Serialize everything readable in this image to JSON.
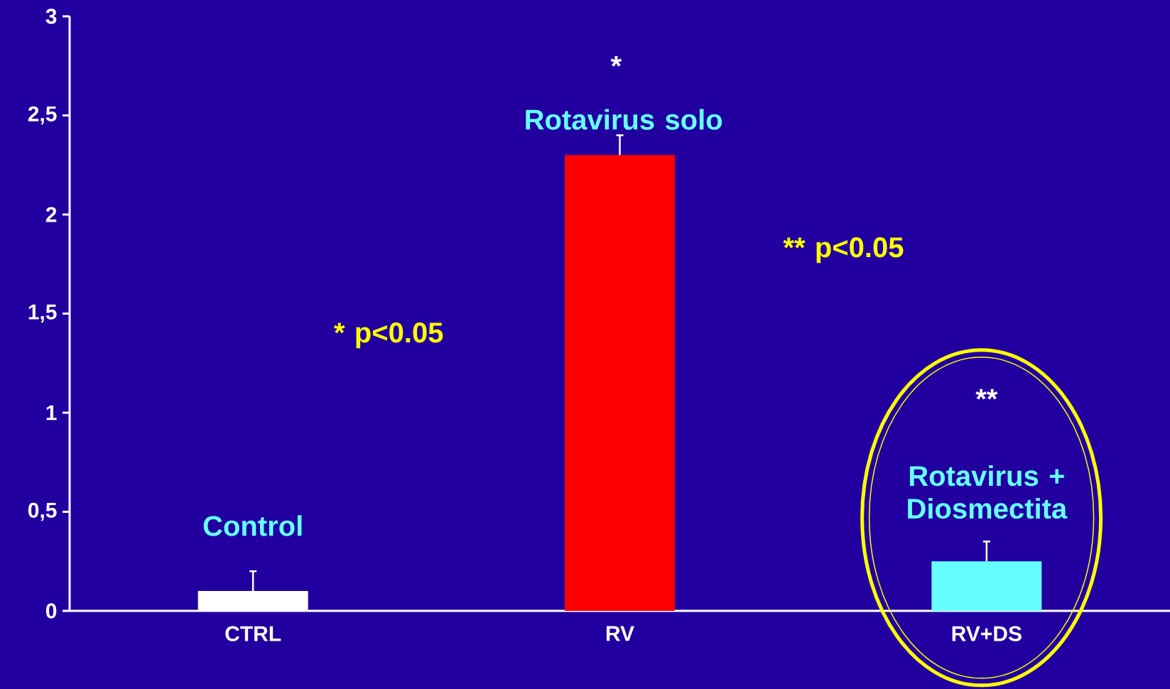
{
  "chart_data": {
    "type": "bar",
    "categories": [
      "CTRL",
      "RV",
      "RV+DS"
    ],
    "values": [
      0.1,
      2.3,
      0.25
    ],
    "colors": [
      "#ffffff",
      "#ff0000",
      "#66ffff"
    ],
    "errors": [
      0.1,
      0.1,
      0.1
    ],
    "ylim": [
      0,
      3
    ],
    "yticks": [
      0,
      {
        "value": 0.5,
        "label": "0,5"
      },
      1,
      {
        "value": 1.5,
        "label": "1,5"
      },
      2,
      {
        "value": 2.5,
        "label": "2,5"
      },
      3
    ],
    "grid": false,
    "annotations": [
      "Control",
      "*",
      "Rotavirus solo",
      "**",
      "Rotavirus + Diosmectita",
      "* p<0.05",
      "** p<0.05"
    ]
  }
}
